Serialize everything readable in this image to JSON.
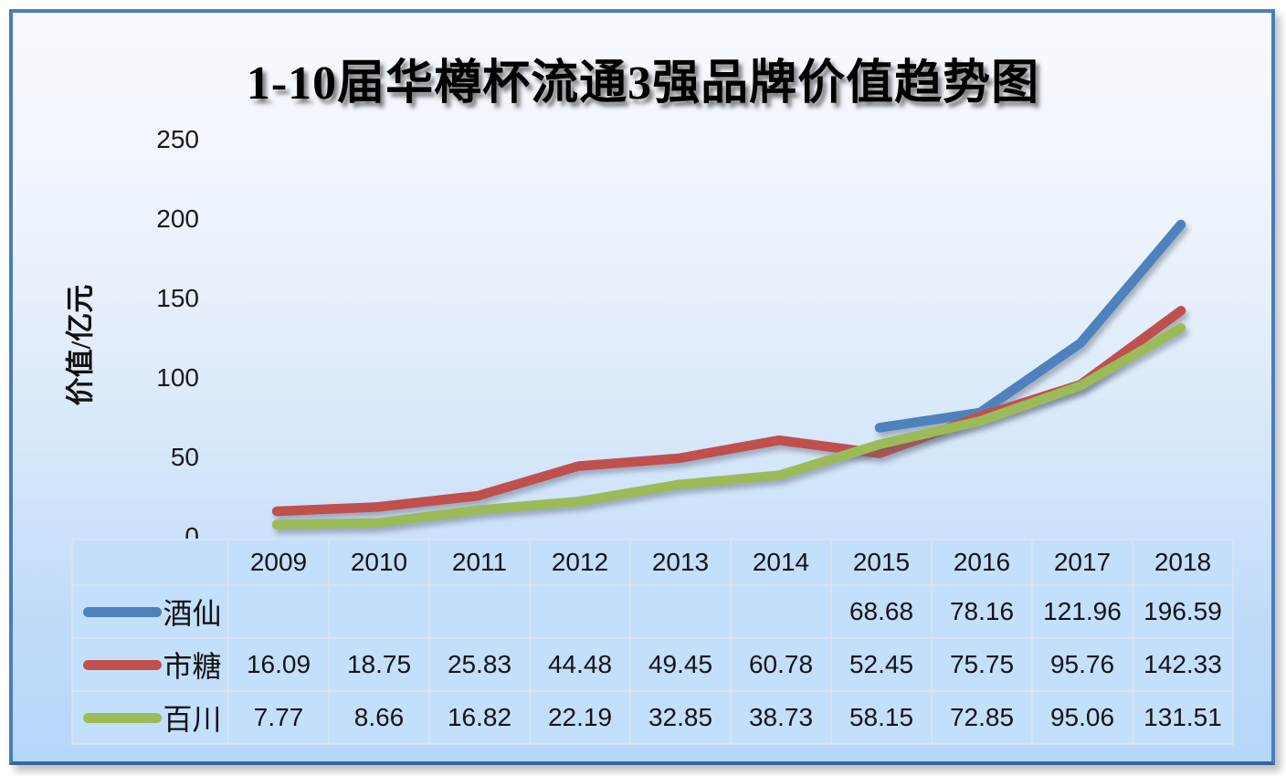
{
  "chart_data": {
    "type": "line",
    "title": "1-10届华樽杯流通3强品牌价值趋势图",
    "ylabel": "价值/亿元",
    "xlabel": "",
    "categories": [
      "2009",
      "2010",
      "2011",
      "2012",
      "2013",
      "2014",
      "2015",
      "2016",
      "2017",
      "2018"
    ],
    "yticks": [
      250,
      200,
      150,
      100,
      50,
      0
    ],
    "ylim": [
      0,
      250
    ],
    "grid": false,
    "legend_position": "table-left",
    "series": [
      {
        "name": "酒仙",
        "color": "#4F81BD",
        "values": [
          null,
          null,
          null,
          null,
          null,
          null,
          68.68,
          78.16,
          121.96,
          196.59
        ]
      },
      {
        "name": "市糖",
        "color": "#C0504D",
        "values": [
          16.09,
          18.75,
          25.83,
          44.48,
          49.45,
          60.78,
          52.45,
          75.75,
          95.76,
          142.33
        ]
      },
      {
        "name": "百川",
        "color": "#9BBB59",
        "values": [
          7.77,
          8.66,
          16.82,
          22.19,
          32.85,
          38.73,
          58.15,
          72.85,
          95.06,
          131.51
        ]
      }
    ]
  },
  "colors": {
    "frame_border": "#4A7CBA",
    "table_cell_bg": "#C3DFFB",
    "table_cell_border": "#D7E2F0"
  }
}
